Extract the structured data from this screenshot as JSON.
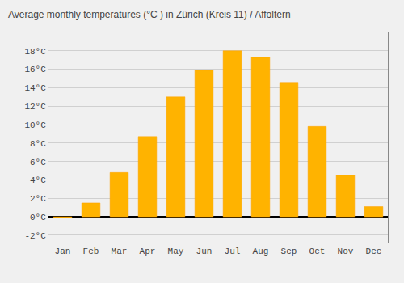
{
  "chart_data": {
    "type": "bar",
    "title": "Average monthly temperatures (°C ) in Zürich (Kreis 11) / Affoltern",
    "categories": [
      "Jan",
      "Feb",
      "Mar",
      "Apr",
      "May",
      "Jun",
      "Jul",
      "Aug",
      "Sep",
      "Oct",
      "Nov",
      "Dec"
    ],
    "values": [
      -0.1,
      1.5,
      4.8,
      8.7,
      13.0,
      15.9,
      18.0,
      17.3,
      14.5,
      9.8,
      4.5,
      1.1
    ],
    "color": "#FFB300",
    "ylim": [
      -2.8,
      20.0
    ],
    "yticks": [
      {
        "value": -2,
        "label": "-2°C"
      },
      {
        "value": 0,
        "label": "0°C"
      },
      {
        "value": 2,
        "label": "2°C"
      },
      {
        "value": 4,
        "label": "4°C"
      },
      {
        "value": 6,
        "label": "6°C"
      },
      {
        "value": 8,
        "label": "8°C"
      },
      {
        "value": 10,
        "label": "10°C"
      },
      {
        "value": 12,
        "label": "12°C"
      },
      {
        "value": 14,
        "label": "14°C"
      },
      {
        "value": 16,
        "label": "16°C"
      },
      {
        "value": 18,
        "label": "18°C"
      }
    ],
    "grid": true
  }
}
